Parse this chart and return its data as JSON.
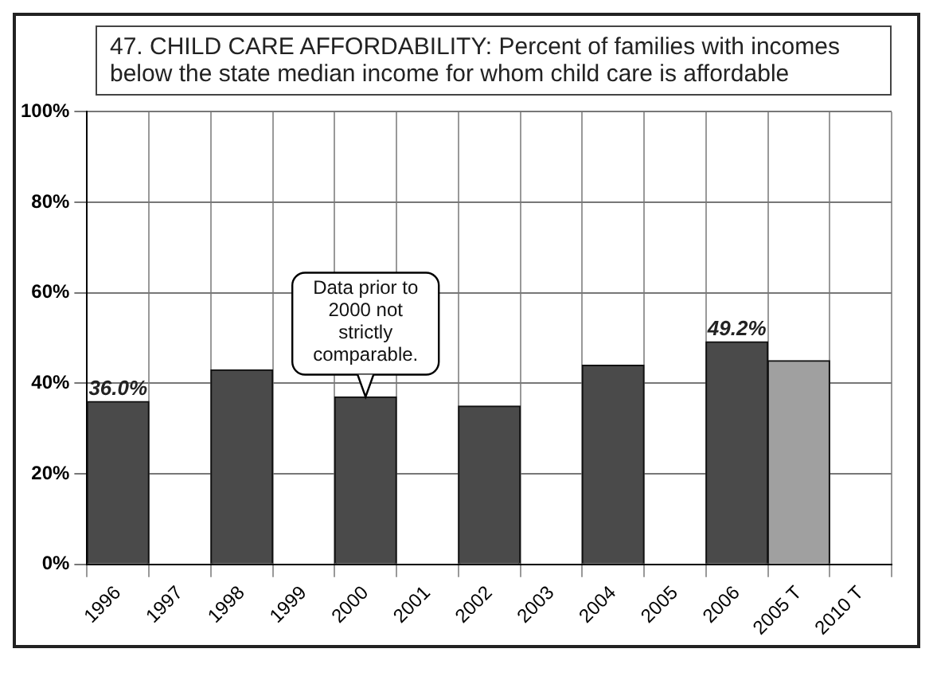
{
  "chart_data": {
    "type": "bar",
    "title": "47. CHILD CARE AFFORDABILITY: Percent of families with incomes below the state median income for whom child care is affordable",
    "categories": [
      "1996",
      "1997",
      "1998",
      "1999",
      "2000",
      "2001",
      "2002",
      "2003",
      "2004",
      "2005",
      "2006",
      "2005 T",
      "2010 T"
    ],
    "values": [
      36.0,
      null,
      43,
      null,
      37,
      null,
      35,
      null,
      44,
      null,
      49.2,
      45,
      null
    ],
    "colors": [
      "#4a4a4a",
      "#4a4a4a",
      "#4a4a4a",
      "#4a4a4a",
      "#4a4a4a",
      "#4a4a4a",
      "#4a4a4a",
      "#4a4a4a",
      "#4a4a4a",
      "#4a4a4a",
      "#4a4a4a",
      "#a0a0a0",
      "#a0a0a0"
    ],
    "value_labels": [
      "36.0%",
      null,
      null,
      null,
      null,
      null,
      null,
      null,
      null,
      null,
      "49.2%",
      null,
      null
    ],
    "ylim": [
      0,
      100
    ],
    "yticks": [
      {
        "value": 0,
        "label": "0%"
      },
      {
        "value": 20,
        "label": "20%"
      },
      {
        "value": 40,
        "label": "40%"
      },
      {
        "value": 60,
        "label": "60%"
      },
      {
        "value": 80,
        "label": "80%"
      },
      {
        "value": 100,
        "label": "100%"
      }
    ],
    "annotations": [
      {
        "text": "Data prior to 2000 not strictly comparable.",
        "x": "2000",
        "y": 37
      }
    ],
    "grid": true
  }
}
